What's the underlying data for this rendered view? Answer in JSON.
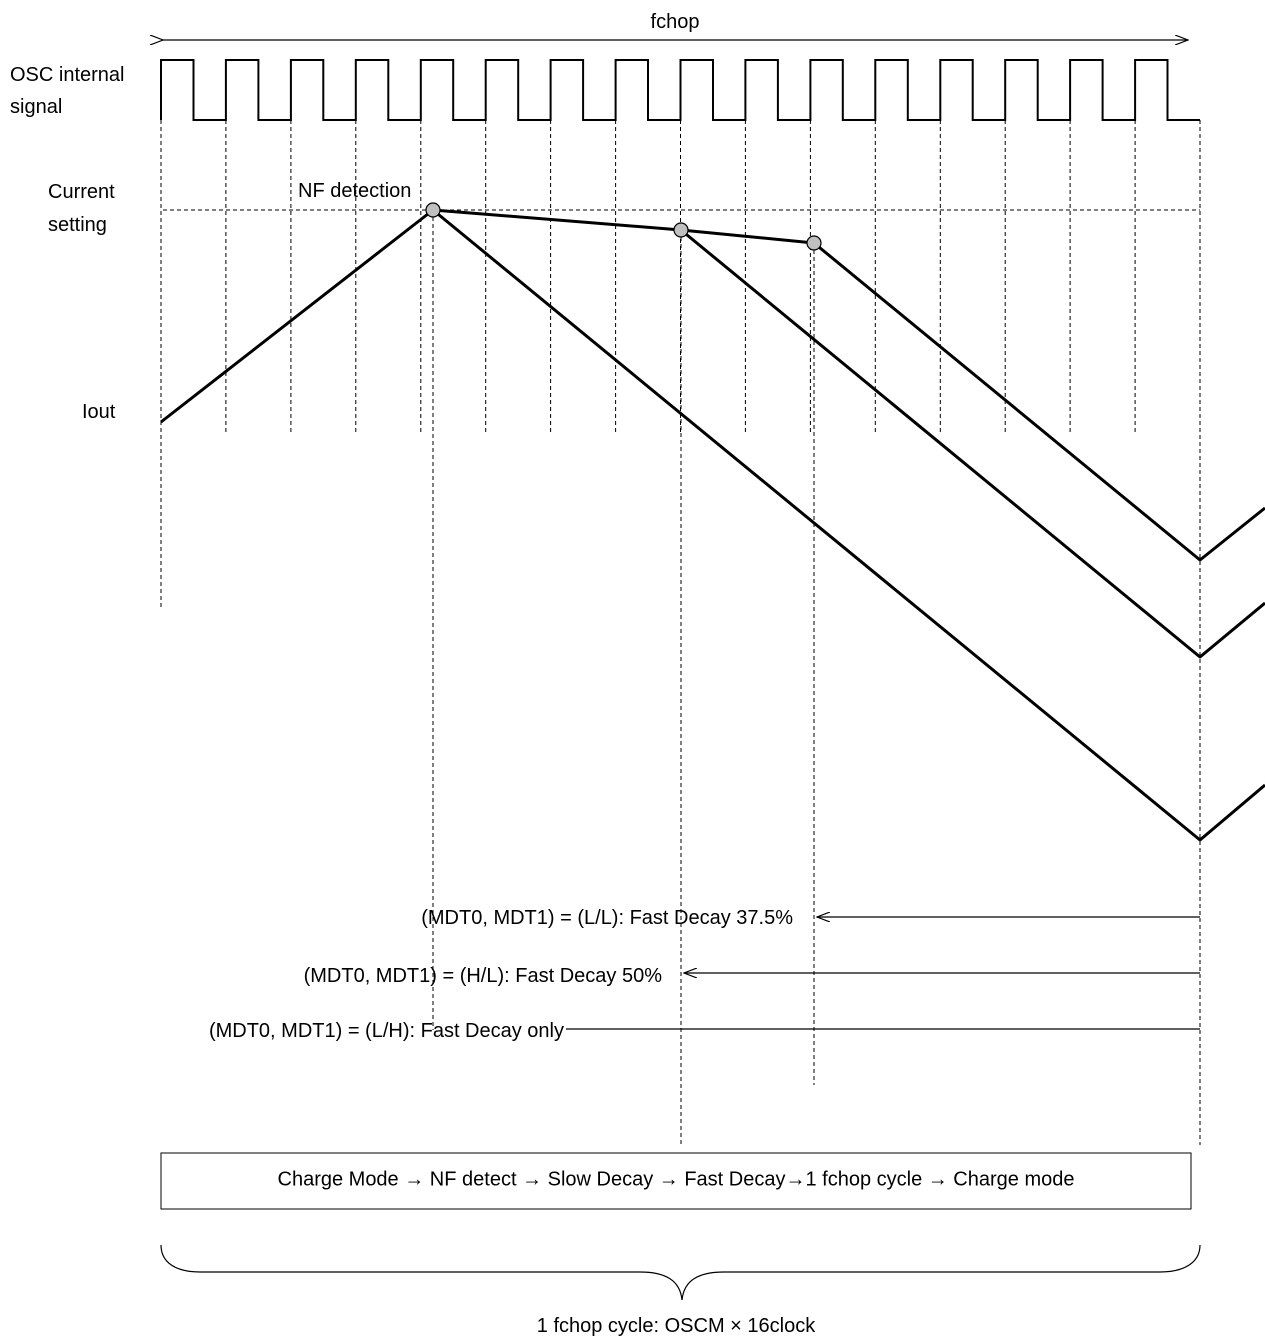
{
  "labels": {
    "fchop": "fchop",
    "osc_line1": "OSC internal",
    "osc_line2": "signal",
    "current_line1": "Current",
    "current_line2": "setting",
    "iout": "Iout",
    "nf_detection": "NF detection",
    "mode_ll": "(MDT0, MDT1) = (L/L): Fast Decay 37.5%",
    "mode_hl": "(MDT0, MDT1) = (H/L): Fast Decay 50%",
    "mode_lh": "(MDT0, MDT1) = (L/H): Fast Decay only",
    "sequence": "Charge Mode  →  NF detect → Slow Decay → Fast Decay→1 fchop cycle → Charge mode",
    "cycle": "1 fchop cycle: OSCM × 16clock"
  },
  "colors": {
    "line": "#000000",
    "detection_dot": "#c0c0c0",
    "background": "#ffffff"
  },
  "osc_clock_cycles": 16
}
